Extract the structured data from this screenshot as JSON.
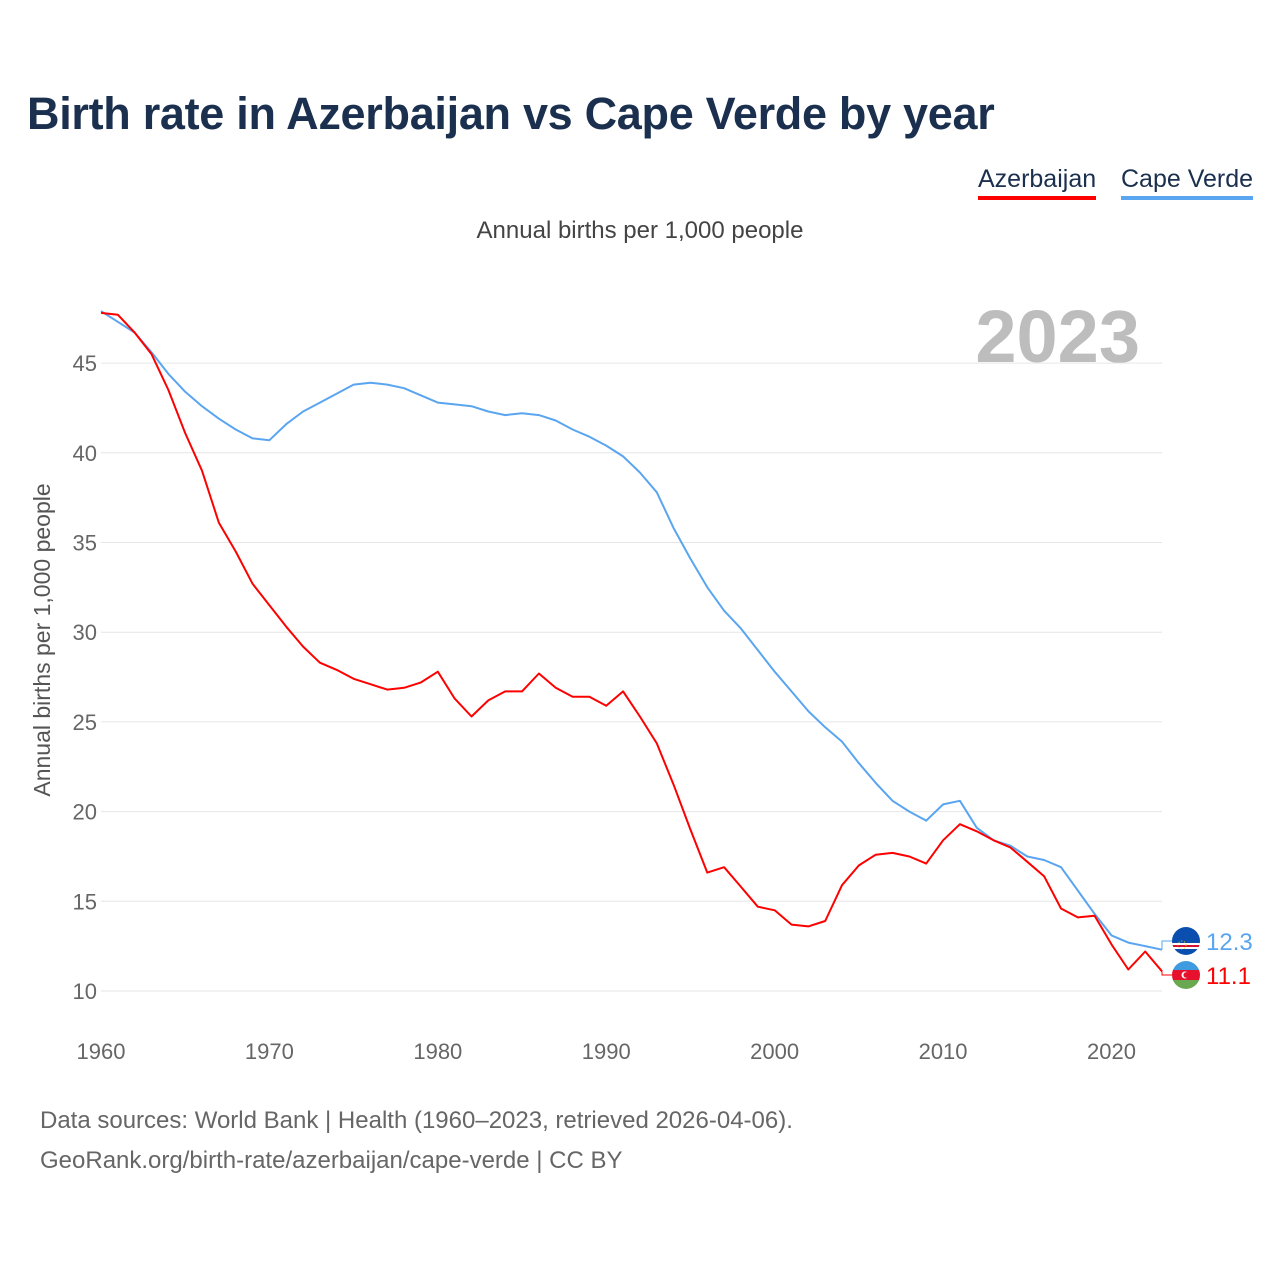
{
  "chart_data": {
    "type": "line",
    "title": "Birth rate in Azerbaijan vs Cape Verde by year",
    "subtitle": "Annual births per 1,000 people",
    "ylabel": "Annual births per 1,000 people",
    "xlabel": "",
    "year_label": "2023",
    "xlim": [
      1960,
      2023
    ],
    "ylim": [
      8,
      48
    ],
    "yticks": [
      10,
      15,
      20,
      25,
      30,
      35,
      40,
      45
    ],
    "xticks": [
      1960,
      1970,
      1980,
      1990,
      2000,
      2010,
      2020
    ],
    "grid": true,
    "legend_position": "top-right",
    "x": [
      1960,
      1961,
      1962,
      1963,
      1964,
      1965,
      1966,
      1967,
      1968,
      1969,
      1970,
      1971,
      1972,
      1973,
      1974,
      1975,
      1976,
      1977,
      1978,
      1979,
      1980,
      1981,
      1982,
      1983,
      1984,
      1985,
      1986,
      1987,
      1988,
      1989,
      1990,
      1991,
      1992,
      1993,
      1994,
      1995,
      1996,
      1997,
      1998,
      1999,
      2000,
      2001,
      2002,
      2003,
      2004,
      2005,
      2006,
      2007,
      2008,
      2009,
      2010,
      2011,
      2012,
      2013,
      2014,
      2015,
      2016,
      2017,
      2018,
      2019,
      2020,
      2021,
      2022,
      2023
    ],
    "series": [
      {
        "name": "Azerbaijan",
        "color": "#ff0000",
        "end_label": "11.1",
        "values": [
          47.8,
          47.7,
          46.7,
          45.5,
          43.5,
          41.1,
          39.0,
          36.1,
          34.5,
          32.7,
          31.5,
          30.3,
          29.2,
          28.3,
          27.9,
          27.4,
          27.1,
          26.8,
          26.9,
          27.2,
          27.8,
          26.3,
          25.3,
          26.2,
          26.7,
          26.7,
          27.7,
          26.9,
          26.4,
          26.4,
          25.9,
          26.7,
          25.3,
          23.8,
          21.5,
          19.0,
          16.6,
          16.9,
          15.8,
          14.7,
          14.5,
          13.7,
          13.6,
          13.9,
          15.9,
          17.0,
          17.6,
          17.7,
          17.5,
          17.1,
          18.4,
          19.3,
          18.9,
          18.4,
          18.0,
          17.2,
          16.4,
          14.6,
          14.1,
          14.2,
          12.6,
          11.2,
          12.2,
          11.1
        ]
      },
      {
        "name": "Cape Verde",
        "color": "#5aa5f0",
        "end_label": "12.3",
        "values": [
          47.9,
          47.3,
          46.7,
          45.6,
          44.4,
          43.4,
          42.6,
          41.9,
          41.3,
          40.8,
          40.7,
          41.6,
          42.3,
          42.8,
          43.3,
          43.8,
          43.9,
          43.8,
          43.6,
          43.2,
          42.8,
          42.7,
          42.6,
          42.3,
          42.1,
          42.2,
          42.1,
          41.8,
          41.3,
          40.9,
          40.4,
          39.8,
          38.9,
          37.8,
          35.8,
          34.1,
          32.5,
          31.2,
          30.2,
          29.0,
          27.8,
          26.7,
          25.6,
          24.7,
          23.9,
          22.7,
          21.6,
          20.6,
          20.0,
          19.5,
          20.4,
          20.6,
          19.1,
          18.4,
          18.1,
          17.5,
          17.3,
          16.9,
          15.6,
          14.3,
          13.1,
          12.7,
          12.5,
          12.3
        ]
      }
    ]
  },
  "footer": {
    "sources": "Data sources: World Bank | Health (1960–2023, retrieved 2026-04-06).",
    "credit": "GeoRank.org/birth-rate/azerbaijan/cape-verde | CC BY"
  }
}
